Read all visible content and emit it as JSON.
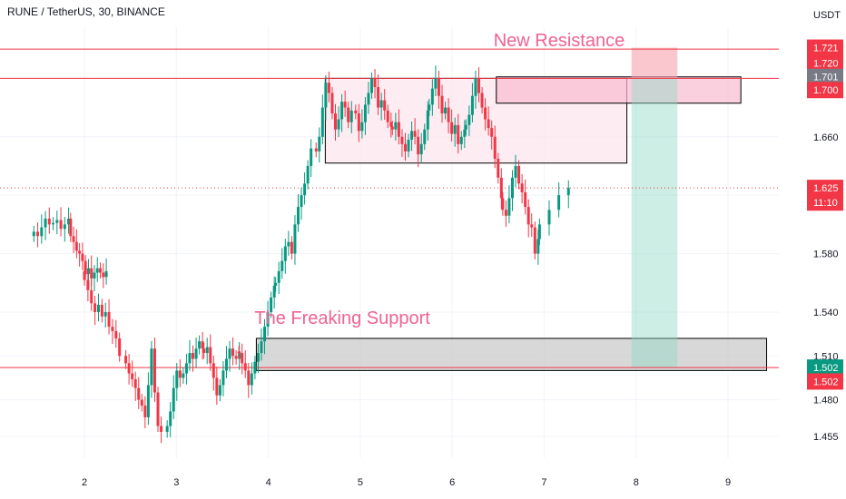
{
  "header": {
    "symbol_line": "RUNE / TetherUS, 30, BINANCE"
  },
  "axis": {
    "currency": "USDT"
  },
  "chart_data": {
    "type": "candlestick",
    "y_axis": {
      "min": 1.44,
      "max": 1.735,
      "ticks": [
        1.455,
        1.48,
        1.51,
        1.54,
        1.58,
        1.62,
        1.66,
        1.7
      ]
    },
    "x_axis": {
      "ticks": [
        "2",
        "3",
        "4",
        "5",
        "6",
        "7",
        "8",
        "9"
      ]
    },
    "price_tags": [
      {
        "label": "1.721",
        "value": 1.721,
        "color": "#f23645"
      },
      {
        "label": "1.720",
        "value": 1.7105,
        "color": "#f23645"
      },
      {
        "label": "1.701",
        "value": 1.701,
        "color": "#787b86"
      },
      {
        "label": "1.700",
        "value": 1.692,
        "color": "#f23645"
      },
      {
        "label": "1.625",
        "value": 1.625,
        "color": "#f23645"
      },
      {
        "label": "11:10",
        "value": 1.615,
        "color": "#f23645"
      },
      {
        "label": "1.502",
        "value": 1.502,
        "color": "#089981"
      },
      {
        "label": "1.502",
        "value": 1.4925,
        "color": "#f23645"
      }
    ],
    "horizontal_lines": [
      {
        "value": 1.72,
        "color": "#f23645"
      },
      {
        "value": 1.7,
        "color": "#f23645"
      },
      {
        "value": 1.502,
        "color": "#f23645"
      }
    ],
    "current_price_line": {
      "value": 1.625,
      "color": "#f23645"
    },
    "zones": [
      {
        "name": "consolidation-box",
        "x0": 4.62,
        "x1": 7.9,
        "y0": 1.642,
        "y1": 1.7,
        "fill": "#fce4ec"
      },
      {
        "name": "new-resistance-box",
        "x0": 6.48,
        "x1": 9.14,
        "y0": 1.683,
        "y1": 1.701,
        "fill": "#f8bbd0"
      },
      {
        "name": "support-box",
        "x0": 3.87,
        "x1": 9.42,
        "y0": 1.5,
        "y1": 1.522,
        "fill": "#c8c8c8"
      }
    ],
    "position": {
      "x0": 7.95,
      "x1": 8.45,
      "entry": 1.7,
      "stop": 1.721,
      "target": 1.502
    },
    "annotations": [
      {
        "text": "New Resistance",
        "x": 6.45,
        "y": 1.722
      },
      {
        "text": "The Freaking Support",
        "x": 3.85,
        "y": 1.532
      }
    ],
    "series": [
      {
        "day": 1.45,
        "values": [
          1.595,
          1.592,
          1.598,
          1.604,
          1.6,
          1.601,
          1.603,
          1.597,
          1.6,
          1.604
        ]
      },
      {
        "day": 1.85,
        "values": [
          1.592,
          1.588,
          1.582,
          1.58,
          1.575,
          1.566,
          1.57,
          1.563,
          1.567,
          1.57,
          1.567,
          1.564,
          1.568
        ]
      },
      {
        "day": 2.0,
        "values": [
          1.562,
          1.555,
          1.546,
          1.54,
          1.545,
          1.537,
          1.54,
          1.53,
          1.527,
          1.522,
          1.51
        ]
      },
      {
        "day": 2.45,
        "values": [
          1.505,
          1.498,
          1.494,
          1.488,
          1.48,
          1.476,
          1.468,
          1.49,
          1.515,
          1.485,
          1.462,
          1.458
        ]
      },
      {
        "day": 2.9,
        "values": [
          1.462,
          1.472,
          1.488,
          1.5,
          1.495,
          1.498,
          1.505,
          1.512,
          1.508,
          1.515,
          1.52,
          1.515
        ]
      },
      {
        "day": 3.3,
        "values": [
          1.512,
          1.516,
          1.505,
          1.495,
          1.483,
          1.49,
          1.5,
          1.508,
          1.515,
          1.51,
          1.508,
          1.513
        ]
      },
      {
        "day": 3.68,
        "values": [
          1.512,
          1.505,
          1.5,
          1.49,
          1.498,
          1.506,
          1.512,
          1.52,
          1.53,
          1.54,
          1.55,
          1.558
        ]
      },
      {
        "day": 4.08,
        "values": [
          1.56,
          1.568,
          1.575,
          1.585,
          1.588,
          1.58,
          1.6,
          1.612,
          1.62,
          1.628,
          1.64,
          1.652
        ]
      },
      {
        "day": 4.52,
        "values": [
          1.65,
          1.66,
          1.68,
          1.697,
          1.69,
          1.676,
          1.665,
          1.672,
          1.684,
          1.68,
          1.67,
          1.678
        ]
      },
      {
        "day": 4.95,
        "values": [
          1.676,
          1.664,
          1.67,
          1.682,
          1.69,
          1.7,
          1.694,
          1.68,
          1.685,
          1.678,
          1.67,
          1.667
        ]
      },
      {
        "day": 5.35,
        "values": [
          1.665,
          1.67,
          1.66,
          1.655,
          1.65,
          1.658,
          1.664,
          1.66,
          1.648,
          1.655,
          1.665,
          1.678
        ]
      },
      {
        "day": 5.75,
        "values": [
          1.682,
          1.693,
          1.7,
          1.688,
          1.676,
          1.68,
          1.67,
          1.662,
          1.668,
          1.655,
          1.66,
          1.665
        ]
      },
      {
        "day": 6.15,
        "values": [
          1.668,
          1.675,
          1.688,
          1.7,
          1.69,
          1.68,
          1.672,
          1.666,
          1.66,
          1.645,
          1.632,
          1.618
        ]
      },
      {
        "day": 6.55,
        "values": [
          1.61,
          1.606,
          1.618,
          1.632,
          1.64,
          1.628,
          1.622,
          1.612,
          1.6,
          1.598,
          1.58,
          1.59
        ]
      },
      {
        "day": 6.95,
        "values": [
          1.6,
          1.61,
          1.62,
          1.625
        ]
      }
    ]
  }
}
